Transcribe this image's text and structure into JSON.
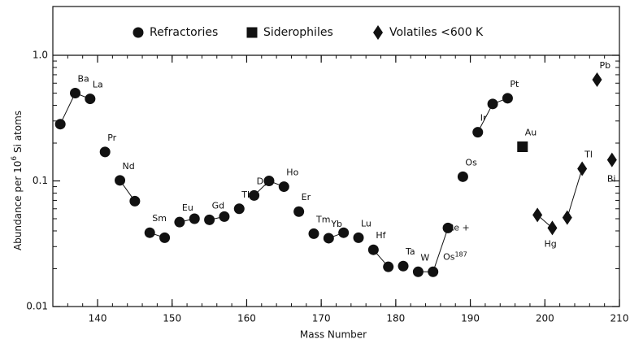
{
  "chart_data": {
    "type": "scatter",
    "xlabel": "Mass Number",
    "ylabel": {
      "before": "Abundance per 10",
      "sup": "6",
      "after": " Si atoms"
    },
    "xlim": [
      134,
      210
    ],
    "xticks": [
      140,
      150,
      160,
      170,
      180,
      190,
      200,
      210
    ],
    "ylim": [
      0.01,
      1
    ],
    "yticks": [
      0.01,
      0.1,
      {
        "value": 1,
        "label": "1.0"
      }
    ],
    "log_y": true,
    "annotation": {
      "text": "Os",
      "sup": "187"
    },
    "series": [
      {
        "name": "Refractories",
        "marker": "circle",
        "color": "#111",
        "x": [
          135,
          137,
          139,
          141,
          143,
          145,
          147,
          149,
          151,
          153,
          155,
          157,
          159,
          161,
          163,
          165,
          167,
          169,
          171,
          173,
          175,
          177,
          179,
          181,
          183,
          185,
          187,
          189,
          191,
          193,
          195
        ],
        "values": [
          0.283,
          0.5,
          0.45,
          0.17,
          0.101,
          0.069,
          0.0387,
          0.0353,
          0.047,
          0.05,
          0.049,
          0.052,
          0.06,
          0.0766,
          0.1,
          0.09,
          0.057,
          0.038,
          0.035,
          0.0387,
          0.0353,
          0.0283,
          0.0207,
          0.021,
          0.0189,
          0.0189,
          0.0422,
          0.108,
          0.244,
          0.41,
          0.455
        ],
        "labels": [
          null,
          "Ba",
          "La",
          "Pr",
          "Nd",
          null,
          "Sm",
          null,
          "Eu",
          null,
          "Gd",
          null,
          "Tb",
          "Dy",
          null,
          "Ho",
          "Er",
          "Tm",
          "Yb",
          null,
          "Lu",
          "Hf",
          null,
          "Ta",
          "W",
          null,
          "Re +",
          "Os",
          "Ir",
          null,
          "Pt"
        ]
      },
      {
        "name": "Siderophiles",
        "marker": "square",
        "color": "#111",
        "x": [
          197
        ],
        "values": [
          0.187
        ],
        "labels": [
          "Au"
        ]
      },
      {
        "name": "Volatiles <600 K",
        "marker": "diamond",
        "color": "#111",
        "x": [
          199,
          201,
          203,
          205,
          207,
          209
        ],
        "values": [
          0.0536,
          0.0422,
          0.051,
          0.125,
          0.64,
          0.147
        ],
        "labels": [
          null,
          "Hg",
          null,
          "Tl",
          "Pb",
          "Bi"
        ]
      }
    ]
  }
}
